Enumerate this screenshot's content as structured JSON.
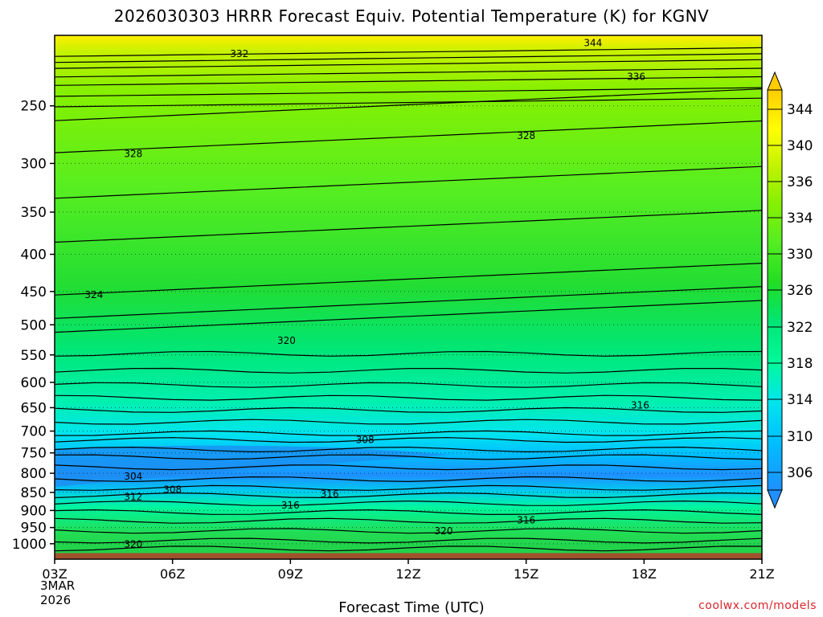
{
  "chart_data": {
    "type": "contour",
    "title": "2026030303 HRRR Forecast Equiv. Potential Temperature (K) for KGNV",
    "xlabel": "Forecast Time (UTC)",
    "ylabel": "",
    "y_scale": "log",
    "y_reversed": true,
    "ylim": [
      1050,
      200
    ],
    "y_ticks": [
      250,
      300,
      350,
      400,
      450,
      500,
      550,
      600,
      650,
      700,
      750,
      800,
      850,
      900,
      950,
      1000
    ],
    "x_ticks": [
      "03Z",
      "06Z",
      "09Z",
      "12Z",
      "15Z",
      "18Z",
      "21Z"
    ],
    "x_tick_hours": [
      0,
      3,
      6,
      9,
      12,
      15,
      18
    ],
    "xlim": [
      0,
      18
    ],
    "date_label": [
      "3MAR",
      "2026"
    ],
    "colorbar": {
      "ticks": [
        306,
        310,
        314,
        318,
        322,
        326,
        330,
        334,
        336,
        340,
        344
      ],
      "tick_labels": [
        "306",
        "310",
        "314",
        "318",
        "322",
        "326",
        "330",
        "334",
        "336",
        "340",
        "344"
      ],
      "colors": [
        "#1E90FF",
        "#00BFFF",
        "#00E5EE",
        "#00FA9A",
        "#00E676",
        "#22DD22",
        "#55EE22",
        "#88F000",
        "#BBF200",
        "#FFFF00",
        "#FFCC00"
      ]
    },
    "grid": true,
    "contour_labels": [
      {
        "value": "344",
        "hour": 13.7,
        "p": 205
      },
      {
        "value": "332",
        "hour": 4.7,
        "p": 212
      },
      {
        "value": "336",
        "hour": 14.8,
        "p": 228
      },
      {
        "value": "328",
        "hour": 12.0,
        "p": 275
      },
      {
        "value": "328",
        "hour": 2.0,
        "p": 291
      },
      {
        "value": "324",
        "hour": 1.0,
        "p": 455
      },
      {
        "value": "320",
        "hour": 5.9,
        "p": 526
      },
      {
        "value": "316",
        "hour": 14.9,
        "p": 645
      },
      {
        "value": "308",
        "hour": 7.9,
        "p": 720
      },
      {
        "value": "304",
        "hour": 2.0,
        "p": 808
      },
      {
        "value": "308",
        "hour": 3.0,
        "p": 843
      },
      {
        "value": "312",
        "hour": 2.0,
        "p": 862
      },
      {
        "value": "316",
        "hour": 7.0,
        "p": 855
      },
      {
        "value": "316",
        "hour": 6.0,
        "p": 886
      },
      {
        "value": "316",
        "hour": 12.0,
        "p": 928
      },
      {
        "value": "320",
        "hour": 9.9,
        "p": 960
      },
      {
        "value": "320",
        "hour": 2.0,
        "p": 1002
      }
    ]
  },
  "watermark": "coolwx.com/models"
}
